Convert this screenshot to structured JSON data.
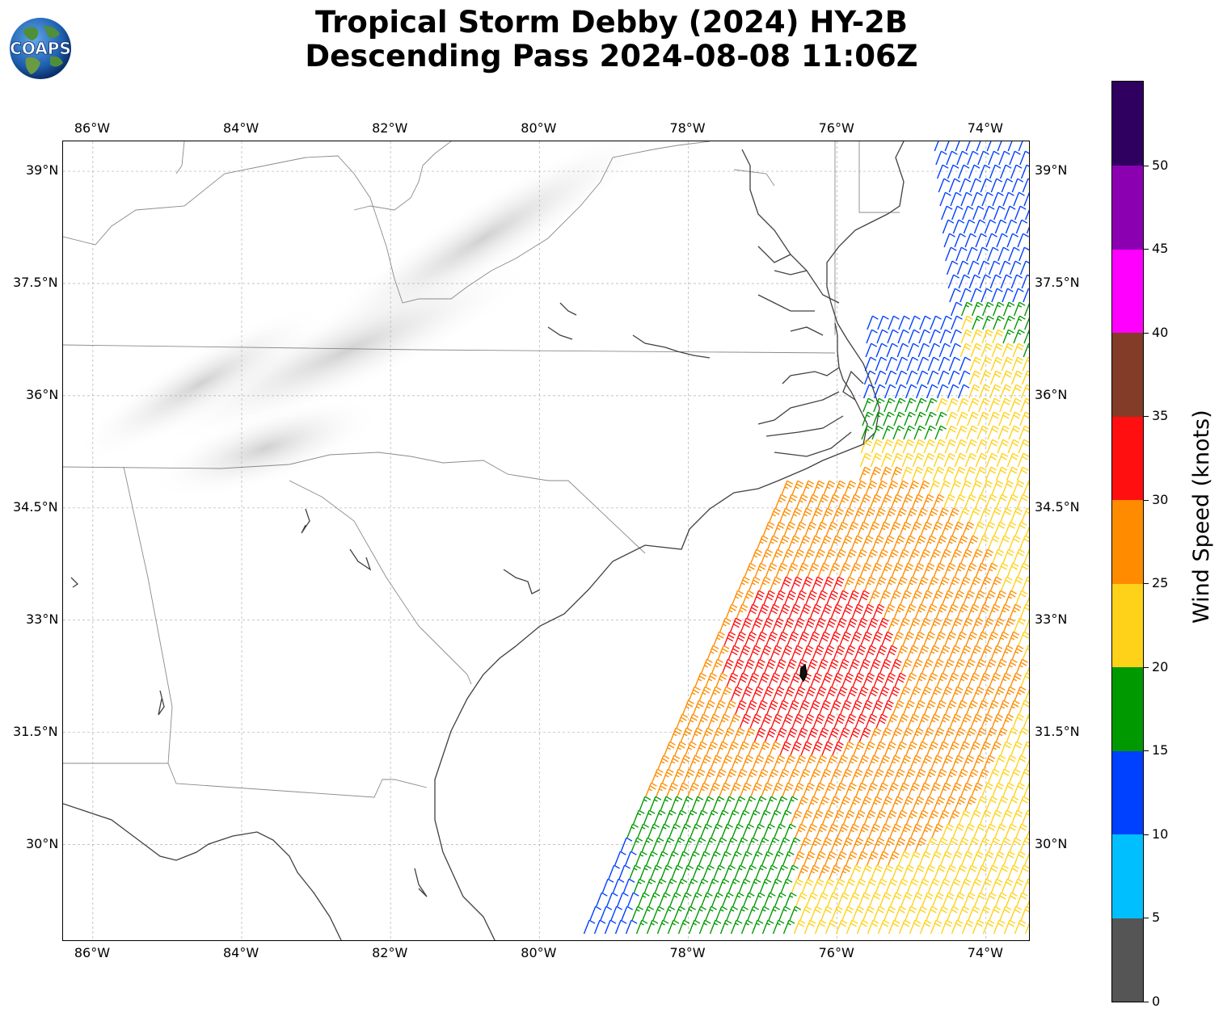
{
  "title": {
    "line1": "Tropical Storm Debby (2024) HY-2B",
    "line2": "Descending Pass 2024-08-08 11:06Z"
  },
  "logo": {
    "text": "COAPS",
    "icon": "globe-icon"
  },
  "map": {
    "lon_range": [
      -86.4,
      -73.4
    ],
    "lat_range": [
      28.7,
      39.4
    ],
    "gridlines": true,
    "lon_ticks": [
      -86,
      -84,
      -82,
      -80,
      -78,
      -76,
      -74
    ],
    "lat_ticks": [
      30,
      31.5,
      33,
      34.5,
      36,
      37.5,
      39
    ],
    "lon_tick_labels": [
      "86°W",
      "84°W",
      "82°W",
      "80°W",
      "78°W",
      "76°W",
      "74°W"
    ],
    "lat_tick_labels": [
      "30°N",
      "31.5°N",
      "33°N",
      "34.5°N",
      "36°N",
      "37.5°N",
      "39°N"
    ],
    "storm_center": {
      "lon": -76.4,
      "lat": 32.3
    },
    "background": "grayscale terrain"
  },
  "colorbar": {
    "label": "Wind Speed (knots)",
    "ticks": [
      "0",
      "5",
      "10",
      "15",
      "20",
      "25",
      "30",
      "35",
      "40",
      "45",
      "50"
    ],
    "bins": [
      {
        "min": 0,
        "max": 5,
        "color": "#555555"
      },
      {
        "min": 5,
        "max": 10,
        "color": "#00bfff"
      },
      {
        "min": 10,
        "max": 15,
        "color": "#0040ff"
      },
      {
        "min": 15,
        "max": 20,
        "color": "#009900"
      },
      {
        "min": 20,
        "max": 25,
        "color": "#ffd21a"
      },
      {
        "min": 25,
        "max": 30,
        "color": "#ff8c00"
      },
      {
        "min": 30,
        "max": 35,
        "color": "#ff0f0f"
      },
      {
        "min": 35,
        "max": 40,
        "color": "#823c28"
      },
      {
        "min": 40,
        "max": 45,
        "color": "#ff00ff"
      },
      {
        "min": 45,
        "max": 50,
        "color": "#8b00b0"
      },
      {
        "min": 50,
        "max": 55,
        "color": "#300060"
      }
    ]
  }
}
